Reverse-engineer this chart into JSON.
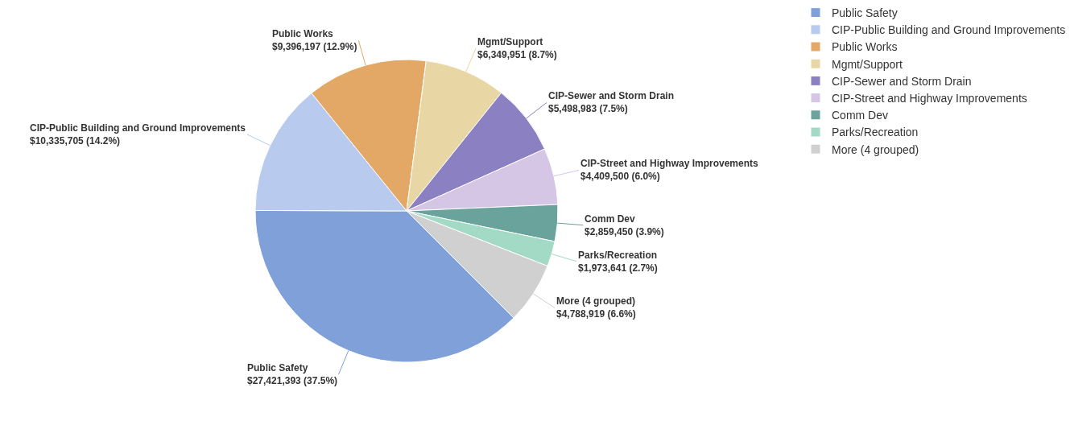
{
  "chart_data": {
    "type": "pie",
    "categories": [
      "Public Safety",
      "CIP-Public Building and Ground Improvements",
      "Public Works",
      "Mgmt/Support",
      "CIP-Sewer and Storm Drain",
      "CIP-Street and Highway Improvements",
      "Comm Dev",
      "Parks/Recreation",
      "More (4 grouped)"
    ],
    "values": [
      27421393,
      10335705,
      9396197,
      6349951,
      5498983,
      4409500,
      2859450,
      1973641,
      4788919
    ],
    "colors": [
      "#7fa0d8",
      "#b8cbee",
      "#e3a865",
      "#e8d6a4",
      "#8a80c2",
      "#d5c6e6",
      "#6aa39b",
      "#a2dac6",
      "#d0d0d0"
    ],
    "value_labels": [
      "$27,421,393 (37.5%)",
      "$10,335,705 (14.2%)",
      "$9,396,197 (12.9%)",
      "$6,349,951 (8.7%)",
      "$5,498,983 (7.5%)",
      "$4,409,500 (6.0%)",
      "$2,859,450 (3.9%)",
      "$1,973,641 (2.7%)",
      "$4,788,919 (6.6%)"
    ],
    "legend": "top right"
  }
}
